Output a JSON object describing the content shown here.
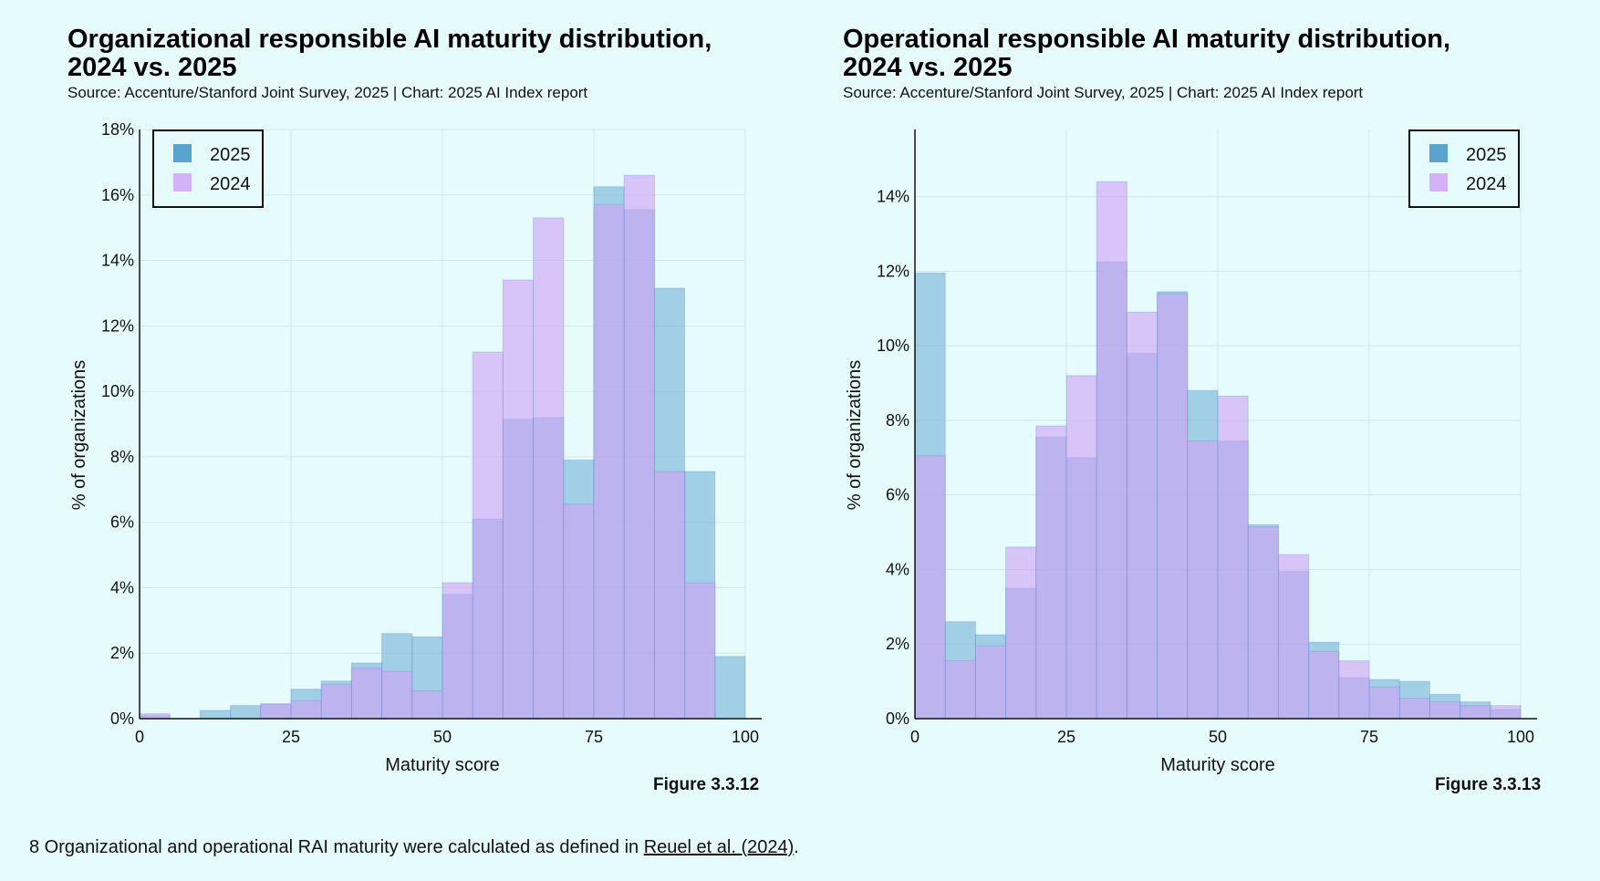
{
  "footnote": {
    "text": "8 Organizational and operational RAI maturity were calculated as defined in ",
    "link": "Reuel et al. (2024)",
    "end": "."
  },
  "chart_data": [
    {
      "type": "bar",
      "title": "Organizational responsible AI maturity distribution,\n2024 vs. 2025",
      "subtitle": "Source: Accenture/Stanford Joint Survey, 2025 | Chart: 2025 AI Index report",
      "figure": "Figure 3.3.12",
      "xlabel": "Maturity score",
      "ylabel": "% of organizations",
      "xlim": [
        0,
        100
      ],
      "ylim": [
        0,
        18
      ],
      "xticks": [
        0,
        25,
        50,
        75,
        100
      ],
      "yticks": [
        0,
        2,
        4,
        6,
        8,
        10,
        12,
        14,
        16,
        18
      ],
      "ytick_labels": [
        "0%",
        "2%",
        "4%",
        "6%",
        "8%",
        "10%",
        "12%",
        "14%",
        "16%",
        "18%"
      ],
      "grid": true,
      "legend": "top-left",
      "bin_edges": [
        0,
        5,
        10,
        15,
        20,
        25,
        30,
        35,
        40,
        45,
        50,
        55,
        60,
        65,
        70,
        75,
        80,
        85,
        90,
        95,
        100
      ],
      "series": [
        {
          "name": "2025",
          "color": "#5ba3cf",
          "values": [
            0.1,
            0,
            0.25,
            0.4,
            0.45,
            0.9,
            1.15,
            1.7,
            2.6,
            2.5,
            3.8,
            6.1,
            9.15,
            9.2,
            7.9,
            16.25,
            15.55,
            13.15,
            7.55,
            1.9
          ]
        },
        {
          "name": "2024",
          "color": "#cfa3f5",
          "values": [
            0.15,
            0,
            0,
            0,
            0.45,
            0.55,
            1.05,
            1.55,
            1.45,
            0.85,
            4.15,
            11.2,
            13.4,
            15.3,
            6.55,
            15.7,
            16.6,
            7.55,
            4.15,
            0
          ]
        }
      ]
    },
    {
      "type": "bar",
      "title": "Operational responsible AI maturity distribution,\n2024 vs. 2025",
      "subtitle": "Source: Accenture/Stanford Joint Survey, 2025 | Chart: 2025 AI Index report",
      "figure": "Figure 3.3.13",
      "xlabel": "Maturity score",
      "ylabel": "% of organizations",
      "xlim": [
        0,
        100
      ],
      "ylim": [
        0,
        15.8
      ],
      "xticks": [
        0,
        25,
        50,
        75,
        100
      ],
      "yticks": [
        0,
        2,
        4,
        6,
        8,
        10,
        12,
        14
      ],
      "ytick_labels": [
        "0%",
        "2%",
        "4%",
        "6%",
        "8%",
        "10%",
        "12%",
        "14%"
      ],
      "grid": true,
      "legend": "top-right",
      "bin_edges": [
        0,
        5,
        10,
        15,
        20,
        25,
        30,
        35,
        40,
        45,
        50,
        55,
        60,
        65,
        70,
        75,
        80,
        85,
        90,
        95,
        100
      ],
      "series": [
        {
          "name": "2025",
          "color": "#5ba3cf",
          "values": [
            11.95,
            2.6,
            2.25,
            3.5,
            7.55,
            7.0,
            12.25,
            9.8,
            11.45,
            8.8,
            7.45,
            5.2,
            3.95,
            2.05,
            1.1,
            1.05,
            1.0,
            0.65,
            0.45,
            0.25
          ]
        },
        {
          "name": "2024",
          "color": "#cfa3f5",
          "values": [
            7.05,
            1.55,
            1.95,
            4.6,
            7.85,
            9.2,
            14.4,
            10.9,
            11.4,
            7.45,
            8.65,
            5.15,
            4.4,
            1.8,
            1.55,
            0.85,
            0.55,
            0.45,
            0.35,
            0.35
          ]
        }
      ]
    }
  ]
}
